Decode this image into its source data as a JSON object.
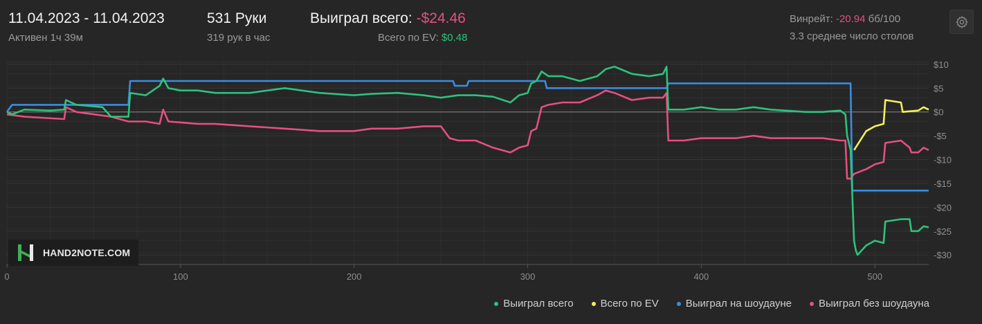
{
  "header": {
    "date_range": "11.04.2023 - 11.04.2023",
    "active_time": "Активен 1ч 39м",
    "hands": "531 Руки",
    "hands_per_hour": "319 рук в час",
    "won_total_label": "Выиграл всего:",
    "won_total_value": "-$24.46",
    "ev_label": "Всего по EV:",
    "ev_value": "$0.48",
    "winrate_label": "Винрейт:",
    "winrate_value": "-20.94",
    "winrate_unit": "бб/100",
    "avg_tables": "3.3 среднее число столов"
  },
  "logo": {
    "text": "HAND2NOTE.COM"
  },
  "icons": {
    "settings": "gear-icon"
  },
  "colors": {
    "background": "#262626",
    "won_total": "#2ec27e",
    "ev": "#f3f15a",
    "showdown": "#3a8de0",
    "non_showdown": "#e4507f",
    "negative_text": "#e4507f",
    "positive_text": "#2ec27e"
  },
  "chart_data": {
    "type": "line",
    "title": "",
    "xlabel": "",
    "ylabel": "",
    "xlim": [
      0,
      531
    ],
    "ylim": [
      -32,
      11
    ],
    "x_ticks": [
      0,
      100,
      200,
      300,
      400,
      500
    ],
    "x_tick_labels": [
      "0",
      "100",
      "200",
      "300",
      "400",
      "500"
    ],
    "y_ticks": [
      10,
      5,
      0,
      -5,
      -10,
      -15,
      -20,
      -25,
      -30
    ],
    "y_tick_labels": [
      "$10",
      "$5",
      "$0",
      "-$5",
      "-$10",
      "-$15",
      "-$20",
      "-$25",
      "-$30"
    ],
    "grid": true,
    "legend_position": "bottom-right",
    "series": [
      {
        "name": "Выиграл всего",
        "color": "#2ec27e",
        "points": [
          [
            0,
            0
          ],
          [
            3,
            -0.5
          ],
          [
            10,
            0.5
          ],
          [
            25,
            0.3
          ],
          [
            33,
            0.5
          ],
          [
            34,
            2.5
          ],
          [
            40,
            1.5
          ],
          [
            55,
            1
          ],
          [
            60,
            -1
          ],
          [
            70,
            -1
          ],
          [
            71,
            4
          ],
          [
            80,
            3.5
          ],
          [
            88,
            5.5
          ],
          [
            90,
            7
          ],
          [
            93,
            5
          ],
          [
            100,
            4.5
          ],
          [
            110,
            4.5
          ],
          [
            120,
            4
          ],
          [
            140,
            4
          ],
          [
            160,
            5
          ],
          [
            180,
            4
          ],
          [
            200,
            3.5
          ],
          [
            210,
            3.8
          ],
          [
            225,
            4
          ],
          [
            240,
            3.5
          ],
          [
            250,
            3
          ],
          [
            260,
            3.5
          ],
          [
            270,
            3.5
          ],
          [
            280,
            3.2
          ],
          [
            290,
            2
          ],
          [
            295,
            3.5
          ],
          [
            300,
            4
          ],
          [
            302,
            6
          ],
          [
            305,
            6.5
          ],
          [
            308,
            8.5
          ],
          [
            312,
            7.5
          ],
          [
            320,
            7.5
          ],
          [
            330,
            6.5
          ],
          [
            340,
            7.5
          ],
          [
            345,
            9
          ],
          [
            350,
            9.5
          ],
          [
            360,
            8
          ],
          [
            370,
            7.5
          ],
          [
            378,
            8
          ],
          [
            380,
            9.5
          ],
          [
            381,
            0.5
          ],
          [
            390,
            0.5
          ],
          [
            400,
            1
          ],
          [
            410,
            0.5
          ],
          [
            420,
            0.5
          ],
          [
            430,
            1
          ],
          [
            440,
            0.5
          ],
          [
            460,
            0
          ],
          [
            470,
            0
          ],
          [
            480,
            0.3
          ],
          [
            483,
            -0.5
          ],
          [
            484,
            -5
          ],
          [
            486,
            -8
          ],
          [
            488,
            -27
          ],
          [
            489,
            -29
          ],
          [
            490,
            -30
          ],
          [
            495,
            -28
          ],
          [
            500,
            -27
          ],
          [
            505,
            -27.5
          ],
          [
            506,
            -23
          ],
          [
            515,
            -22.5
          ],
          [
            520,
            -22.5
          ],
          [
            521,
            -25
          ],
          [
            525,
            -25
          ],
          [
            528,
            -24
          ],
          [
            531,
            -24.2
          ]
        ]
      },
      {
        "name": "Всего по EV",
        "color": "#f3f15a",
        "points": [
          [
            488,
            -8
          ],
          [
            495,
            -4
          ],
          [
            500,
            -3
          ],
          [
            505,
            -2.5
          ],
          [
            506,
            2.5
          ],
          [
            515,
            2
          ],
          [
            516,
            0
          ],
          [
            525,
            0.3
          ],
          [
            528,
            1
          ],
          [
            531,
            0.5
          ]
        ]
      },
      {
        "name": "Выиграл на шоудауне",
        "color": "#3a8de0",
        "points": [
          [
            0,
            0
          ],
          [
            3,
            1.5
          ],
          [
            70,
            1.5
          ],
          [
            71,
            6.5
          ],
          [
            257,
            6.5
          ],
          [
            258,
            5.5
          ],
          [
            265,
            5.5
          ],
          [
            266,
            6.5
          ],
          [
            300,
            6.5
          ],
          [
            301,
            6.5
          ],
          [
            310,
            6.5
          ],
          [
            311,
            5
          ],
          [
            380,
            5
          ],
          [
            381,
            6
          ],
          [
            486,
            6
          ],
          [
            487,
            -16.5
          ],
          [
            531,
            -16.5
          ]
        ]
      },
      {
        "name": "Выиграл без шоудауна",
        "color": "#e4507f",
        "points": [
          [
            0,
            -0.5
          ],
          [
            10,
            -1
          ],
          [
            33,
            -1.5
          ],
          [
            34,
            1
          ],
          [
            40,
            0
          ],
          [
            60,
            -1
          ],
          [
            70,
            -2
          ],
          [
            80,
            -2
          ],
          [
            88,
            -2.5
          ],
          [
            90,
            0.5
          ],
          [
            93,
            -2
          ],
          [
            110,
            -2.5
          ],
          [
            120,
            -2.5
          ],
          [
            140,
            -3
          ],
          [
            160,
            -3.5
          ],
          [
            180,
            -4
          ],
          [
            200,
            -4
          ],
          [
            210,
            -3.5
          ],
          [
            225,
            -3.5
          ],
          [
            240,
            -3
          ],
          [
            250,
            -3
          ],
          [
            255,
            -5.5
          ],
          [
            260,
            -6
          ],
          [
            270,
            -6
          ],
          [
            280,
            -7.5
          ],
          [
            290,
            -8.5
          ],
          [
            295,
            -7.5
          ],
          [
            300,
            -7
          ],
          [
            302,
            -4
          ],
          [
            305,
            -3.5
          ],
          [
            308,
            1
          ],
          [
            312,
            1.5
          ],
          [
            320,
            2
          ],
          [
            330,
            2
          ],
          [
            340,
            3.5
          ],
          [
            345,
            4.5
          ],
          [
            350,
            4
          ],
          [
            360,
            2.5
          ],
          [
            370,
            3
          ],
          [
            378,
            3
          ],
          [
            380,
            4
          ],
          [
            381,
            -6
          ],
          [
            390,
            -6
          ],
          [
            400,
            -5.5
          ],
          [
            410,
            -5.5
          ],
          [
            420,
            -5.5
          ],
          [
            430,
            -5
          ],
          [
            440,
            -5.5
          ],
          [
            460,
            -5.5
          ],
          [
            470,
            -5.5
          ],
          [
            480,
            -6
          ],
          [
            483,
            -6
          ],
          [
            484,
            -14
          ],
          [
            486,
            -14
          ],
          [
            488,
            -13
          ],
          [
            495,
            -12
          ],
          [
            500,
            -11
          ],
          [
            505,
            -10.5
          ],
          [
            506,
            -6.5
          ],
          [
            515,
            -6
          ],
          [
            520,
            -7.5
          ],
          [
            521,
            -8.5
          ],
          [
            525,
            -8.5
          ],
          [
            528,
            -7.5
          ],
          [
            531,
            -8
          ]
        ]
      }
    ]
  }
}
